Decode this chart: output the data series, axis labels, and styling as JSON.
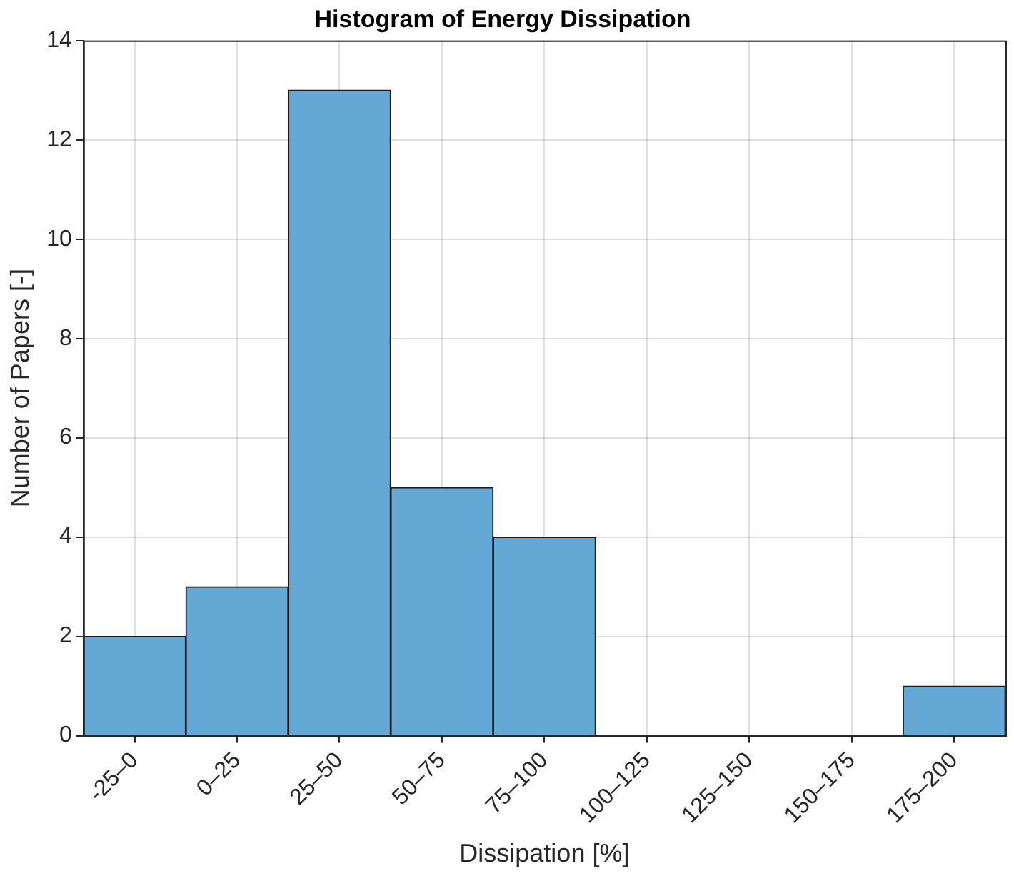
{
  "chart_data": {
    "type": "bar",
    "title": "Histogram of Energy Dissipation",
    "xlabel": "Dissipation [%]",
    "ylabel": "Number of Papers [-]",
    "categories": [
      "-25–0",
      "0–25",
      "25–50",
      "50–75",
      "75–100",
      "100–125",
      "125–150",
      "150–175",
      "175–200"
    ],
    "values": [
      2,
      3,
      13,
      5,
      4,
      0,
      0,
      0,
      1
    ],
    "color": "#64a8d6",
    "ylim": [
      0,
      14
    ],
    "yticks": [
      0,
      2,
      4,
      6,
      8,
      10,
      12,
      14
    ],
    "grid": true,
    "legend": false
  }
}
